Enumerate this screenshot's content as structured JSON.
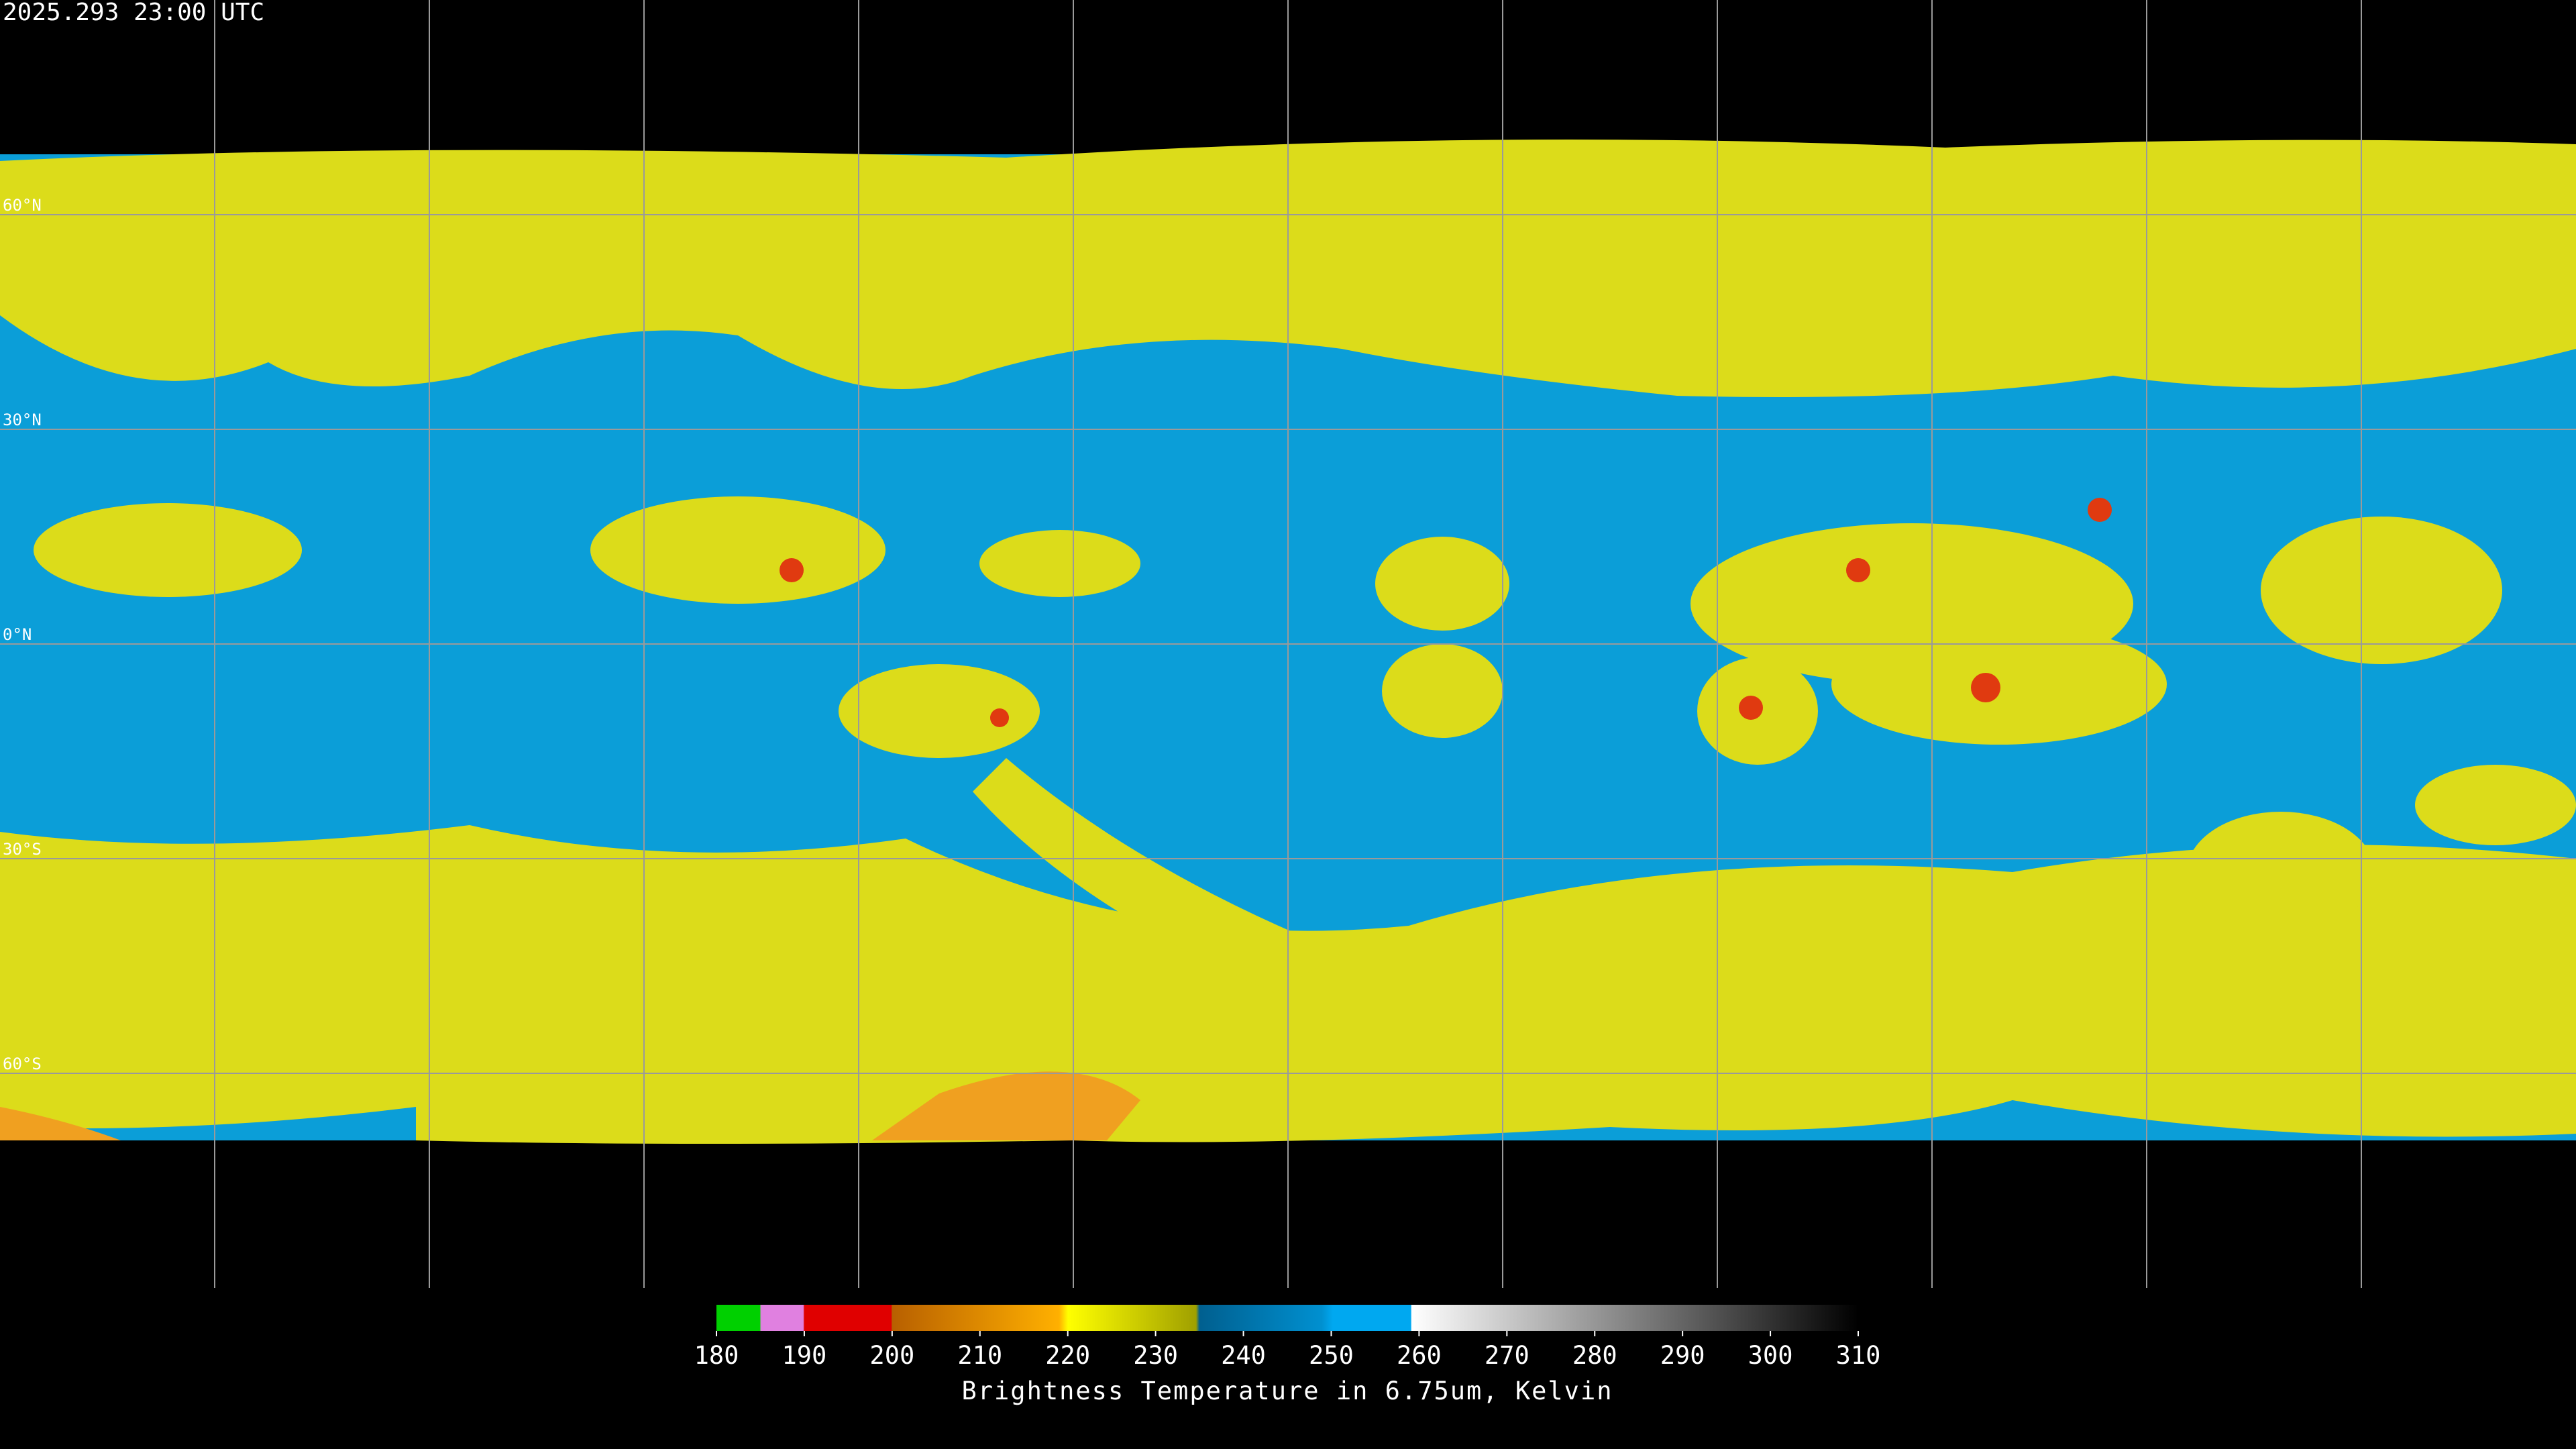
{
  "header": {
    "title": "2025.293 23:00 UTC"
  },
  "lat_labels": [
    "60°N",
    "30°N",
    "0°N",
    "30°S",
    "60°S"
  ],
  "colorbar": {
    "xlim": [
      180,
      310
    ],
    "ticks": [
      180,
      190,
      200,
      210,
      220,
      230,
      240,
      250,
      260,
      270,
      280,
      290,
      300,
      310
    ],
    "label": "Brightness Temperature in 6.75um, Kelvin"
  }
}
